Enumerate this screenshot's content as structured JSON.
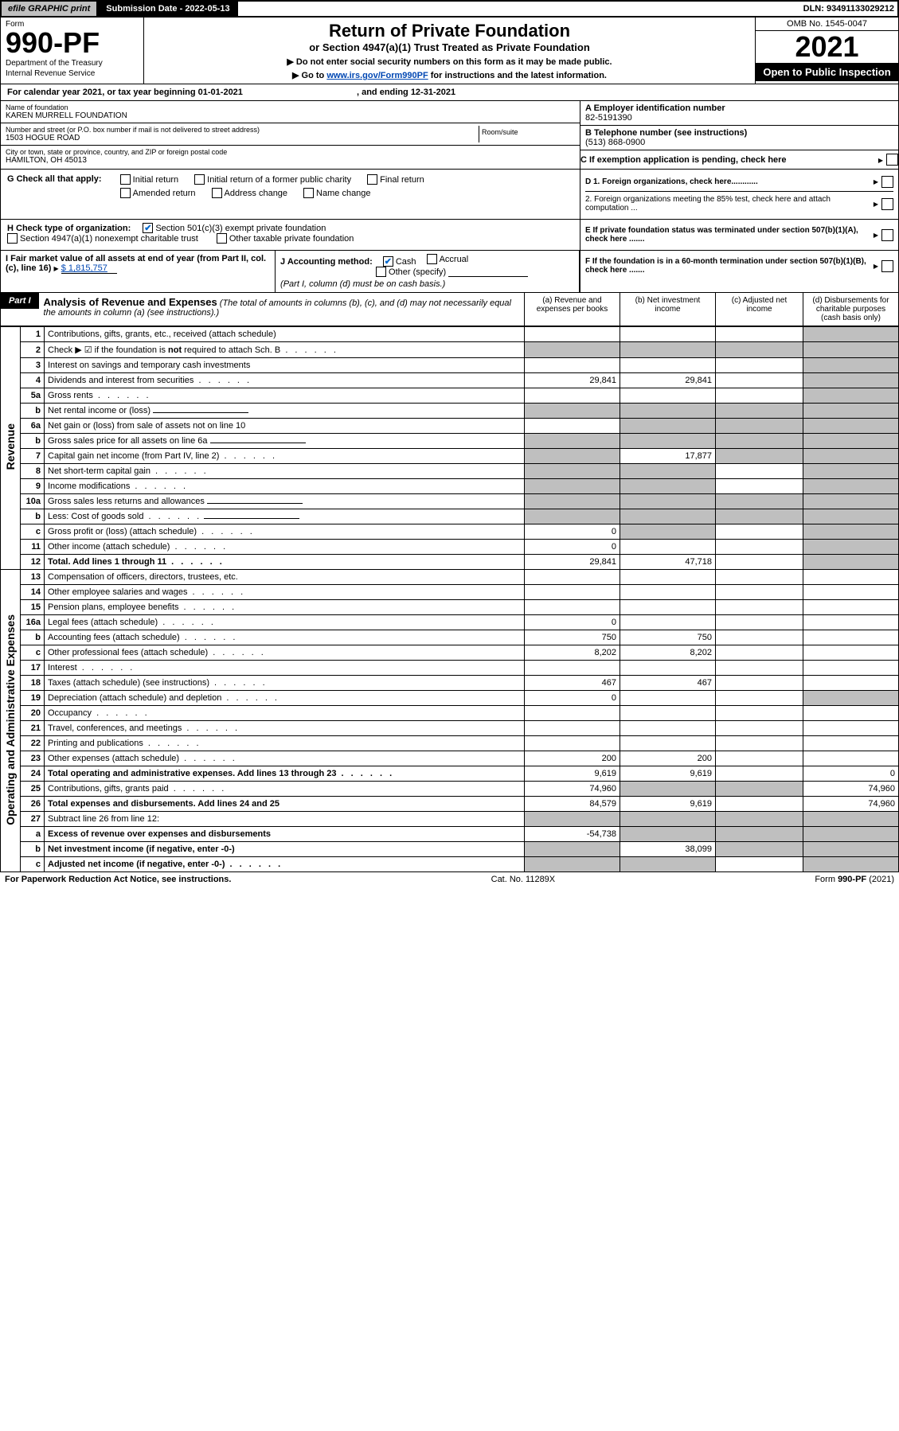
{
  "topbar": {
    "efile": "efile GRAPHIC print",
    "submission_label": "Submission Date - 2022-05-13",
    "dln": "DLN: 93491133029212"
  },
  "header": {
    "form_label": "Form",
    "form_number": "990-PF",
    "dept1": "Department of the Treasury",
    "dept2": "Internal Revenue Service",
    "title": "Return of Private Foundation",
    "subtitle": "or Section 4947(a)(1) Trust Treated as Private Foundation",
    "note1": "▶ Do not enter social security numbers on this form as it may be made public.",
    "note2_pre": "▶ Go to ",
    "note2_link": "www.irs.gov/Form990PF",
    "note2_post": " for instructions and the latest information.",
    "omb": "OMB No. 1545-0047",
    "year": "2021",
    "open": "Open to Public Inspection"
  },
  "calendar": {
    "text": "For calendar year 2021, or tax year beginning 01-01-2021",
    "ending": ", and ending 12-31-2021"
  },
  "foundation": {
    "name_label": "Name of foundation",
    "name": "KAREN MURRELL FOUNDATION",
    "addr_label": "Number and street (or P.O. box number if mail is not delivered to street address)",
    "addr": "1503 HOGUE ROAD",
    "room_label": "Room/suite",
    "city_label": "City or town, state or province, country, and ZIP or foreign postal code",
    "city": "HAMILTON, OH  45013",
    "a_label": "A Employer identification number",
    "ein": "82-5191390",
    "b_label": "B Telephone number (see instructions)",
    "phone": "(513) 868-0900",
    "c_label": "C If exemption application is pending, check here",
    "d1": "D 1. Foreign organizations, check here............",
    "d2": "2. Foreign organizations meeting the 85% test, check here and attach computation ...",
    "e": "E  If private foundation status was terminated under section 507(b)(1)(A), check here .......",
    "f": "F  If the foundation is in a 60-month termination under section 507(b)(1)(B), check here ......."
  },
  "g": {
    "label": "G Check all that apply:",
    "opts": [
      "Initial return",
      "Initial return of a former public charity",
      "Final return",
      "Amended return",
      "Address change",
      "Name change"
    ]
  },
  "h": {
    "label": "H Check type of organization:",
    "opt1": "Section 501(c)(3) exempt private foundation",
    "opt2": "Section 4947(a)(1) nonexempt charitable trust",
    "opt3": "Other taxable private foundation"
  },
  "i": {
    "label": "I Fair market value of all assets at end of year (from Part II, col. (c), line 16)",
    "value": "$  1,815,757"
  },
  "j": {
    "label": "J Accounting method:",
    "cash": "Cash",
    "accrual": "Accrual",
    "other": "Other (specify)",
    "note": "(Part I, column (d) must be on cash basis.)"
  },
  "part1": {
    "tag": "Part I",
    "title": "Analysis of Revenue and Expenses",
    "desc": " (The total of amounts in columns (b), (c), and (d) may not necessarily equal the amounts in column (a) (see instructions).)",
    "cols": {
      "a": "(a)   Revenue and expenses per books",
      "b": "(b)   Net investment income",
      "c": "(c)   Adjusted net income",
      "d": "(d)  Disbursements for charitable purposes (cash basis only)"
    }
  },
  "sidelabels": {
    "revenue": "Revenue",
    "expenses": "Operating and Administrative Expenses"
  },
  "rows": [
    {
      "n": "1",
      "d": "Contributions, gifts, grants, etc., received (attach schedule)",
      "a": "",
      "b": "",
      "c": "",
      "dd": "",
      "grey_d": true
    },
    {
      "n": "2",
      "d": "Check ▶ ☑ if the foundation is not required to attach Sch. B",
      "dots": true,
      "a": "",
      "b": "",
      "c": "",
      "dd": "",
      "grey_a": true,
      "grey_b": true,
      "grey_c": true,
      "grey_d": true,
      "bold_not": true
    },
    {
      "n": "3",
      "d": "Interest on savings and temporary cash investments",
      "a": "",
      "b": "",
      "c": "",
      "dd": "",
      "grey_d": true
    },
    {
      "n": "4",
      "d": "Dividends and interest from securities",
      "dots": true,
      "a": "29,841",
      "b": "29,841",
      "c": "",
      "dd": "",
      "grey_d": true
    },
    {
      "n": "5a",
      "d": "Gross rents",
      "dots": true,
      "a": "",
      "b": "",
      "c": "",
      "dd": "",
      "grey_d": true
    },
    {
      "n": "b",
      "d": "Net rental income or (loss)",
      "a": "",
      "b": "",
      "c": "",
      "dd": "",
      "grey_a": true,
      "grey_b": true,
      "grey_c": true,
      "grey_d": true,
      "has_blank": true
    },
    {
      "n": "6a",
      "d": "Net gain or (loss) from sale of assets not on line 10",
      "a": "",
      "b": "",
      "c": "",
      "dd": "",
      "grey_b": true,
      "grey_c": true,
      "grey_d": true
    },
    {
      "n": "b",
      "d": "Gross sales price for all assets on line 6a",
      "a": "",
      "b": "",
      "c": "",
      "dd": "",
      "grey_a": true,
      "grey_b": true,
      "grey_c": true,
      "grey_d": true,
      "has_blank": true
    },
    {
      "n": "7",
      "d": "Capital gain net income (from Part IV, line 2)",
      "dots": true,
      "a": "",
      "b": "17,877",
      "c": "",
      "dd": "",
      "grey_a": true,
      "grey_c": true,
      "grey_d": true
    },
    {
      "n": "8",
      "d": "Net short-term capital gain",
      "dots": true,
      "a": "",
      "b": "",
      "c": "",
      "dd": "",
      "grey_a": true,
      "grey_b": true,
      "grey_d": true
    },
    {
      "n": "9",
      "d": "Income modifications",
      "dots": true,
      "a": "",
      "b": "",
      "c": "",
      "dd": "",
      "grey_a": true,
      "grey_b": true,
      "grey_d": true
    },
    {
      "n": "10a",
      "d": "Gross sales less returns and allowances",
      "a": "",
      "b": "",
      "c": "",
      "dd": "",
      "grey_a": true,
      "grey_b": true,
      "grey_c": true,
      "grey_d": true,
      "has_blank": true
    },
    {
      "n": "b",
      "d": "Less: Cost of goods sold",
      "dots": true,
      "a": "",
      "b": "",
      "c": "",
      "dd": "",
      "grey_a": true,
      "grey_b": true,
      "grey_c": true,
      "grey_d": true,
      "has_blank": true
    },
    {
      "n": "c",
      "d": "Gross profit or (loss) (attach schedule)",
      "dots": true,
      "a": "0",
      "b": "",
      "c": "",
      "dd": "",
      "grey_b": true,
      "grey_d": true
    },
    {
      "n": "11",
      "d": "Other income (attach schedule)",
      "dots": true,
      "a": "0",
      "b": "",
      "c": "",
      "dd": "",
      "grey_d": true
    },
    {
      "n": "12",
      "d": "Total. Add lines 1 through 11",
      "dots": true,
      "a": "29,841",
      "b": "47,718",
      "c": "",
      "dd": "",
      "grey_d": true,
      "bold": true
    },
    {
      "n": "13",
      "d": "Compensation of officers, directors, trustees, etc.",
      "a": "",
      "b": "",
      "c": "",
      "dd": ""
    },
    {
      "n": "14",
      "d": "Other employee salaries and wages",
      "dots": true,
      "a": "",
      "b": "",
      "c": "",
      "dd": ""
    },
    {
      "n": "15",
      "d": "Pension plans, employee benefits",
      "dots": true,
      "a": "",
      "b": "",
      "c": "",
      "dd": ""
    },
    {
      "n": "16a",
      "d": "Legal fees (attach schedule)",
      "dots": true,
      "a": "0",
      "b": "",
      "c": "",
      "dd": ""
    },
    {
      "n": "b",
      "d": "Accounting fees (attach schedule)",
      "dots": true,
      "a": "750",
      "b": "750",
      "c": "",
      "dd": ""
    },
    {
      "n": "c",
      "d": "Other professional fees (attach schedule)",
      "dots": true,
      "a": "8,202",
      "b": "8,202",
      "c": "",
      "dd": ""
    },
    {
      "n": "17",
      "d": "Interest",
      "dots": true,
      "a": "",
      "b": "",
      "c": "",
      "dd": ""
    },
    {
      "n": "18",
      "d": "Taxes (attach schedule) (see instructions)",
      "dots": true,
      "a": "467",
      "b": "467",
      "c": "",
      "dd": ""
    },
    {
      "n": "19",
      "d": "Depreciation (attach schedule) and depletion",
      "dots": true,
      "a": "0",
      "b": "",
      "c": "",
      "dd": "",
      "grey_d": true
    },
    {
      "n": "20",
      "d": "Occupancy",
      "dots": true,
      "a": "",
      "b": "",
      "c": "",
      "dd": ""
    },
    {
      "n": "21",
      "d": "Travel, conferences, and meetings",
      "dots": true,
      "a": "",
      "b": "",
      "c": "",
      "dd": ""
    },
    {
      "n": "22",
      "d": "Printing and publications",
      "dots": true,
      "a": "",
      "b": "",
      "c": "",
      "dd": ""
    },
    {
      "n": "23",
      "d": "Other expenses (attach schedule)",
      "dots": true,
      "a": "200",
      "b": "200",
      "c": "",
      "dd": ""
    },
    {
      "n": "24",
      "d": "Total operating and administrative expenses. Add lines 13 through 23",
      "dots": true,
      "a": "9,619",
      "b": "9,619",
      "c": "",
      "dd": "0",
      "bold": true
    },
    {
      "n": "25",
      "d": "Contributions, gifts, grants paid",
      "dots": true,
      "a": "74,960",
      "b": "",
      "c": "",
      "dd": "74,960",
      "grey_b": true,
      "grey_c": true
    },
    {
      "n": "26",
      "d": "Total expenses and disbursements. Add lines 24 and 25",
      "a": "84,579",
      "b": "9,619",
      "c": "",
      "dd": "74,960",
      "bold": true
    },
    {
      "n": "27",
      "d": "Subtract line 26 from line 12:",
      "a": "",
      "b": "",
      "c": "",
      "dd": "",
      "grey_a": true,
      "grey_b": true,
      "grey_c": true,
      "grey_d": true
    },
    {
      "n": "a",
      "d": "Excess of revenue over expenses and disbursements",
      "a": "-54,738",
      "b": "",
      "c": "",
      "dd": "",
      "grey_b": true,
      "grey_c": true,
      "grey_d": true,
      "bold": true
    },
    {
      "n": "b",
      "d": "Net investment income (if negative, enter -0-)",
      "a": "",
      "b": "38,099",
      "c": "",
      "dd": "",
      "grey_a": true,
      "grey_c": true,
      "grey_d": true,
      "bold": true
    },
    {
      "n": "c",
      "d": "Adjusted net income (if negative, enter -0-)",
      "dots": true,
      "a": "",
      "b": "",
      "c": "",
      "dd": "",
      "grey_a": true,
      "grey_b": true,
      "grey_d": true,
      "bold": true
    }
  ],
  "footer": {
    "left": "For Paperwork Reduction Act Notice, see instructions.",
    "mid": "Cat. No. 11289X",
    "right": "Form 990-PF (2021)"
  }
}
